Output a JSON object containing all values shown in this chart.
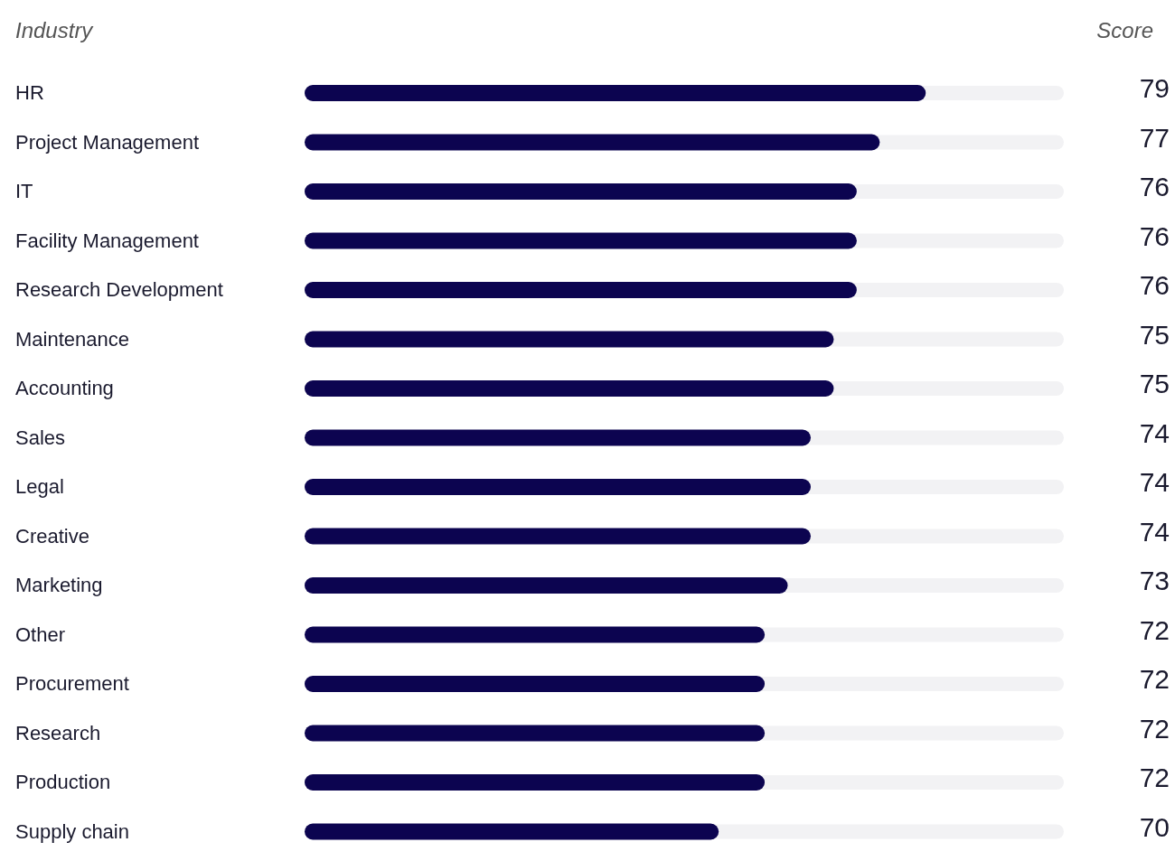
{
  "chart_data": {
    "type": "bar",
    "orientation": "horizontal",
    "ylabel": "Industry",
    "xlabel": "Score",
    "categories": [
      "HR",
      "Project Management",
      "IT",
      "Facility Management",
      "Research Development",
      "Maintenance",
      "Accounting",
      "Sales",
      "Legal",
      "Creative",
      "Marketing",
      "Other",
      "Procurement",
      "Research",
      "Production",
      "Supply chain"
    ],
    "values": [
      79,
      77,
      76,
      76,
      76,
      75,
      75,
      74,
      74,
      74,
      73,
      72,
      72,
      72,
      72,
      70
    ],
    "color": "#0c0450",
    "xlim": [
      52,
      85
    ],
    "tick_labels": false,
    "data_labels": true
  }
}
